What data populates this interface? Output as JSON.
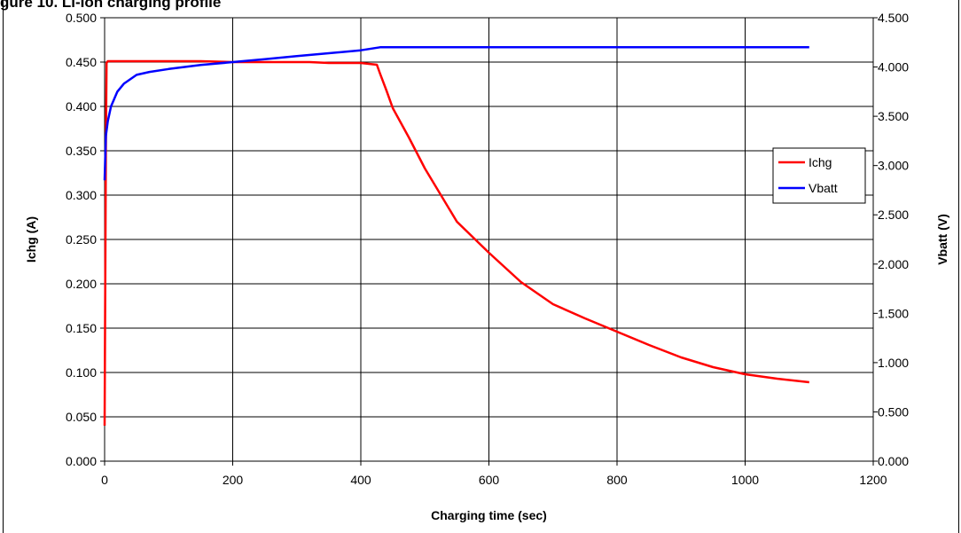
{
  "page_title": "gure 10. Li-Ion charging profile",
  "chart_data": {
    "type": "line",
    "xlabel": "Charging time (sec)",
    "ylabel": "Ichg (A)",
    "y2label": "Vbatt (V)",
    "xlim": [
      0,
      1200
    ],
    "ylim": [
      0,
      0.5
    ],
    "y2lim": [
      0,
      4.5
    ],
    "xticks": [
      "0",
      "200",
      "400",
      "600",
      "800",
      "1000",
      "1200"
    ],
    "yticks": [
      "0.000",
      "0.050",
      "0.100",
      "0.150",
      "0.200",
      "0.250",
      "0.300",
      "0.350",
      "0.400",
      "0.450",
      "0.500"
    ],
    "y2ticks": [
      "0.000",
      "0.500",
      "1.000",
      "1.500",
      "2.000",
      "2.500",
      "3.000",
      "3.500",
      "4.000",
      "4.500"
    ],
    "grid": true,
    "legend_position": "right",
    "series": [
      {
        "name": "Ichg",
        "axis": "left",
        "color": "#ff0000",
        "x": [
          0,
          2,
          3,
          5,
          20,
          50,
          100,
          150,
          200,
          250,
          320,
          350,
          400,
          425,
          430,
          440,
          450,
          475,
          500,
          550,
          600,
          650,
          700,
          750,
          800,
          850,
          900,
          950,
          1000,
          1050,
          1100
        ],
        "y": [
          0.04,
          0.35,
          0.449,
          0.451,
          0.451,
          0.451,
          0.451,
          0.451,
          0.45,
          0.45,
          0.45,
          0.449,
          0.449,
          0.447,
          0.437,
          0.418,
          0.398,
          0.365,
          0.33,
          0.27,
          0.235,
          0.202,
          0.177,
          0.161,
          0.146,
          0.131,
          0.117,
          0.106,
          0.098,
          0.093,
          0.089
        ]
      },
      {
        "name": "Vbatt",
        "axis": "right",
        "color": "#0000ff",
        "x": [
          0,
          2,
          5,
          10,
          20,
          30,
          50,
          70,
          100,
          150,
          200,
          250,
          300,
          350,
          400,
          430,
          500,
          600,
          700,
          800,
          900,
          1000,
          1100
        ],
        "y": [
          2.85,
          3.3,
          3.45,
          3.6,
          3.75,
          3.83,
          3.92,
          3.95,
          3.98,
          4.02,
          4.05,
          4.08,
          4.11,
          4.14,
          4.17,
          4.2,
          4.2,
          4.2,
          4.2,
          4.2,
          4.2,
          4.2,
          4.2
        ]
      }
    ]
  }
}
